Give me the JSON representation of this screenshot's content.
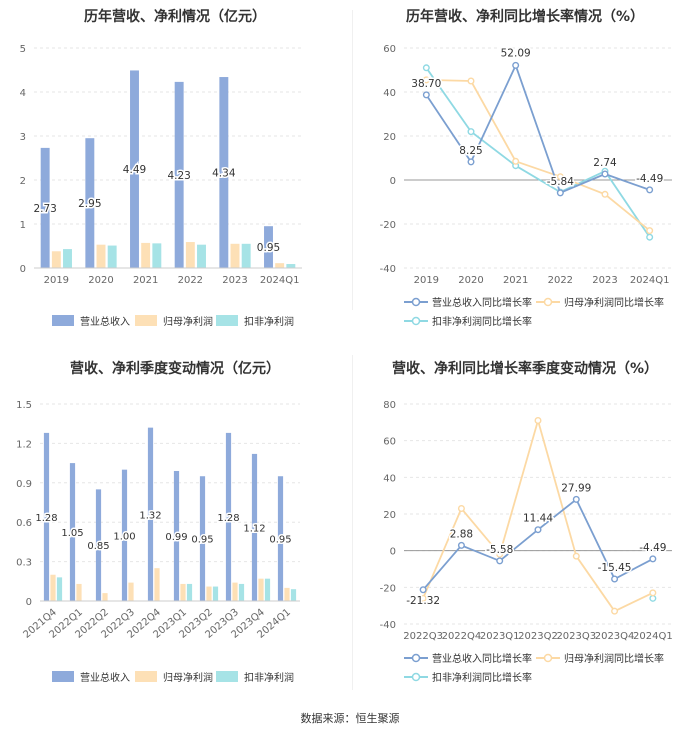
{
  "source": "数据来源：恒生聚源",
  "chart_data": [
    {
      "type": "bar",
      "title": "历年营收、净利情况（亿元）",
      "categories": [
        "2019",
        "2020",
        "2021",
        "2022",
        "2023",
        "2024Q1"
      ],
      "ylim": [
        0,
        5
      ],
      "yticks": [
        0,
        1,
        2,
        3,
        4,
        5
      ],
      "legend_position": "bottom",
      "series": [
        {
          "name": "营业总收入",
          "color": "#8eaadb",
          "values": [
            2.73,
            2.95,
            4.49,
            4.23,
            4.34,
            0.95
          ],
          "labels": [
            "2.73",
            "2.95",
            "4.49",
            "4.23",
            "4.34",
            "0.95"
          ]
        },
        {
          "name": "归母净利润",
          "color": "#fde0b6",
          "values": [
            0.38,
            0.53,
            0.57,
            0.59,
            0.55,
            0.11
          ]
        },
        {
          "name": "扣非净利润",
          "color": "#a6e3e6",
          "values": [
            0.43,
            0.51,
            0.56,
            0.53,
            0.55,
            0.09
          ]
        }
      ]
    },
    {
      "type": "line",
      "title": "历年营收、净利同比增长率情况（%）",
      "categories": [
        "2019",
        "2020",
        "2021",
        "2022",
        "2023",
        "2024Q1"
      ],
      "ylim": [
        -40,
        60
      ],
      "yticks": [
        -40,
        -20,
        0,
        20,
        40,
        60
      ],
      "legend_position": "bottom",
      "series": [
        {
          "name": "营业总收入同比增长率",
          "color": "#7b9fd0",
          "values": [
            38.7,
            8.25,
            52.09,
            -5.84,
            2.74,
            -4.49
          ],
          "labels": [
            "38.70",
            "8.25",
            "52.09",
            "-5.84",
            "2.74",
            "-4.49"
          ]
        },
        {
          "name": "归母净利润同比增长率",
          "color": "#fcd9a4",
          "values": [
            45.5,
            45.0,
            8.5,
            1.5,
            -6.5,
            -23.0
          ]
        },
        {
          "name": "扣非净利润同比增长率",
          "color": "#8fd9e3",
          "values": [
            51.0,
            22.0,
            6.5,
            -5.5,
            4.0,
            -26.0
          ]
        }
      ]
    },
    {
      "type": "bar",
      "title": "营收、净利季度变动情况（亿元）",
      "categories": [
        "2021Q4",
        "2022Q1",
        "2022Q2",
        "2022Q3",
        "2022Q4",
        "2023Q1",
        "2023Q2",
        "2023Q3",
        "2023Q4",
        "2024Q1"
      ],
      "ylim": [
        0,
        1.5
      ],
      "yticks": [
        0,
        0.3,
        0.6,
        0.9,
        1.2,
        1.5
      ],
      "ytick_labels": [
        "0",
        "0.3",
        "0.6",
        "0.9",
        "1.2",
        "1.5"
      ],
      "legend_position": "bottom",
      "series": [
        {
          "name": "营业总收入",
          "color": "#8eaadb",
          "values": [
            1.28,
            1.05,
            0.85,
            1.0,
            1.32,
            0.99,
            0.95,
            1.28,
            1.12,
            0.95
          ],
          "labels": [
            "1.28",
            "1.05",
            "0.85",
            "1.00",
            "1.32",
            "0.99",
            "0.95",
            "1.28",
            "1.12",
            "0.95"
          ]
        },
        {
          "name": "归母净利润",
          "color": "#fde0b6",
          "values": [
            0.2,
            0.13,
            0.06,
            0.14,
            0.25,
            0.13,
            0.11,
            0.14,
            0.17,
            0.1
          ]
        },
        {
          "name": "扣非净利润",
          "color": "#a6e3e6",
          "values": [
            0.18,
            0.0,
            0.0,
            0.0,
            0.0,
            0.13,
            0.11,
            0.13,
            0.17,
            0.09
          ]
        }
      ]
    },
    {
      "type": "line",
      "title": "营收、净利同比增长率季度变动情况（%）",
      "categories": [
        "2022Q3",
        "2022Q4",
        "2023Q1",
        "2023Q2",
        "2023Q3",
        "2023Q4",
        "2024Q1"
      ],
      "ylim": [
        -40,
        80
      ],
      "yticks": [
        -40,
        -20,
        0,
        20,
        40,
        60,
        80
      ],
      "legend_position": "bottom",
      "series": [
        {
          "name": "营业总收入同比增长率",
          "color": "#7b9fd0",
          "values": [
            -21.32,
            2.88,
            -5.58,
            11.44,
            27.99,
            -15.45,
            -4.49
          ],
          "labels": [
            "-21.32",
            "2.88",
            "-5.58",
            "11.44",
            "27.99",
            "-15.45",
            "-4.49"
          ]
        },
        {
          "name": "归母净利润同比增长率",
          "color": "#fcd9a4",
          "values": [
            -26.0,
            23.0,
            -2.0,
            71.0,
            -3.0,
            -33.0,
            -23.0
          ]
        },
        {
          "name": "扣非净利润同比增长率",
          "color": "#8fd9e3",
          "values": [
            null,
            null,
            null,
            null,
            null,
            null,
            -26.0
          ]
        }
      ]
    }
  ]
}
